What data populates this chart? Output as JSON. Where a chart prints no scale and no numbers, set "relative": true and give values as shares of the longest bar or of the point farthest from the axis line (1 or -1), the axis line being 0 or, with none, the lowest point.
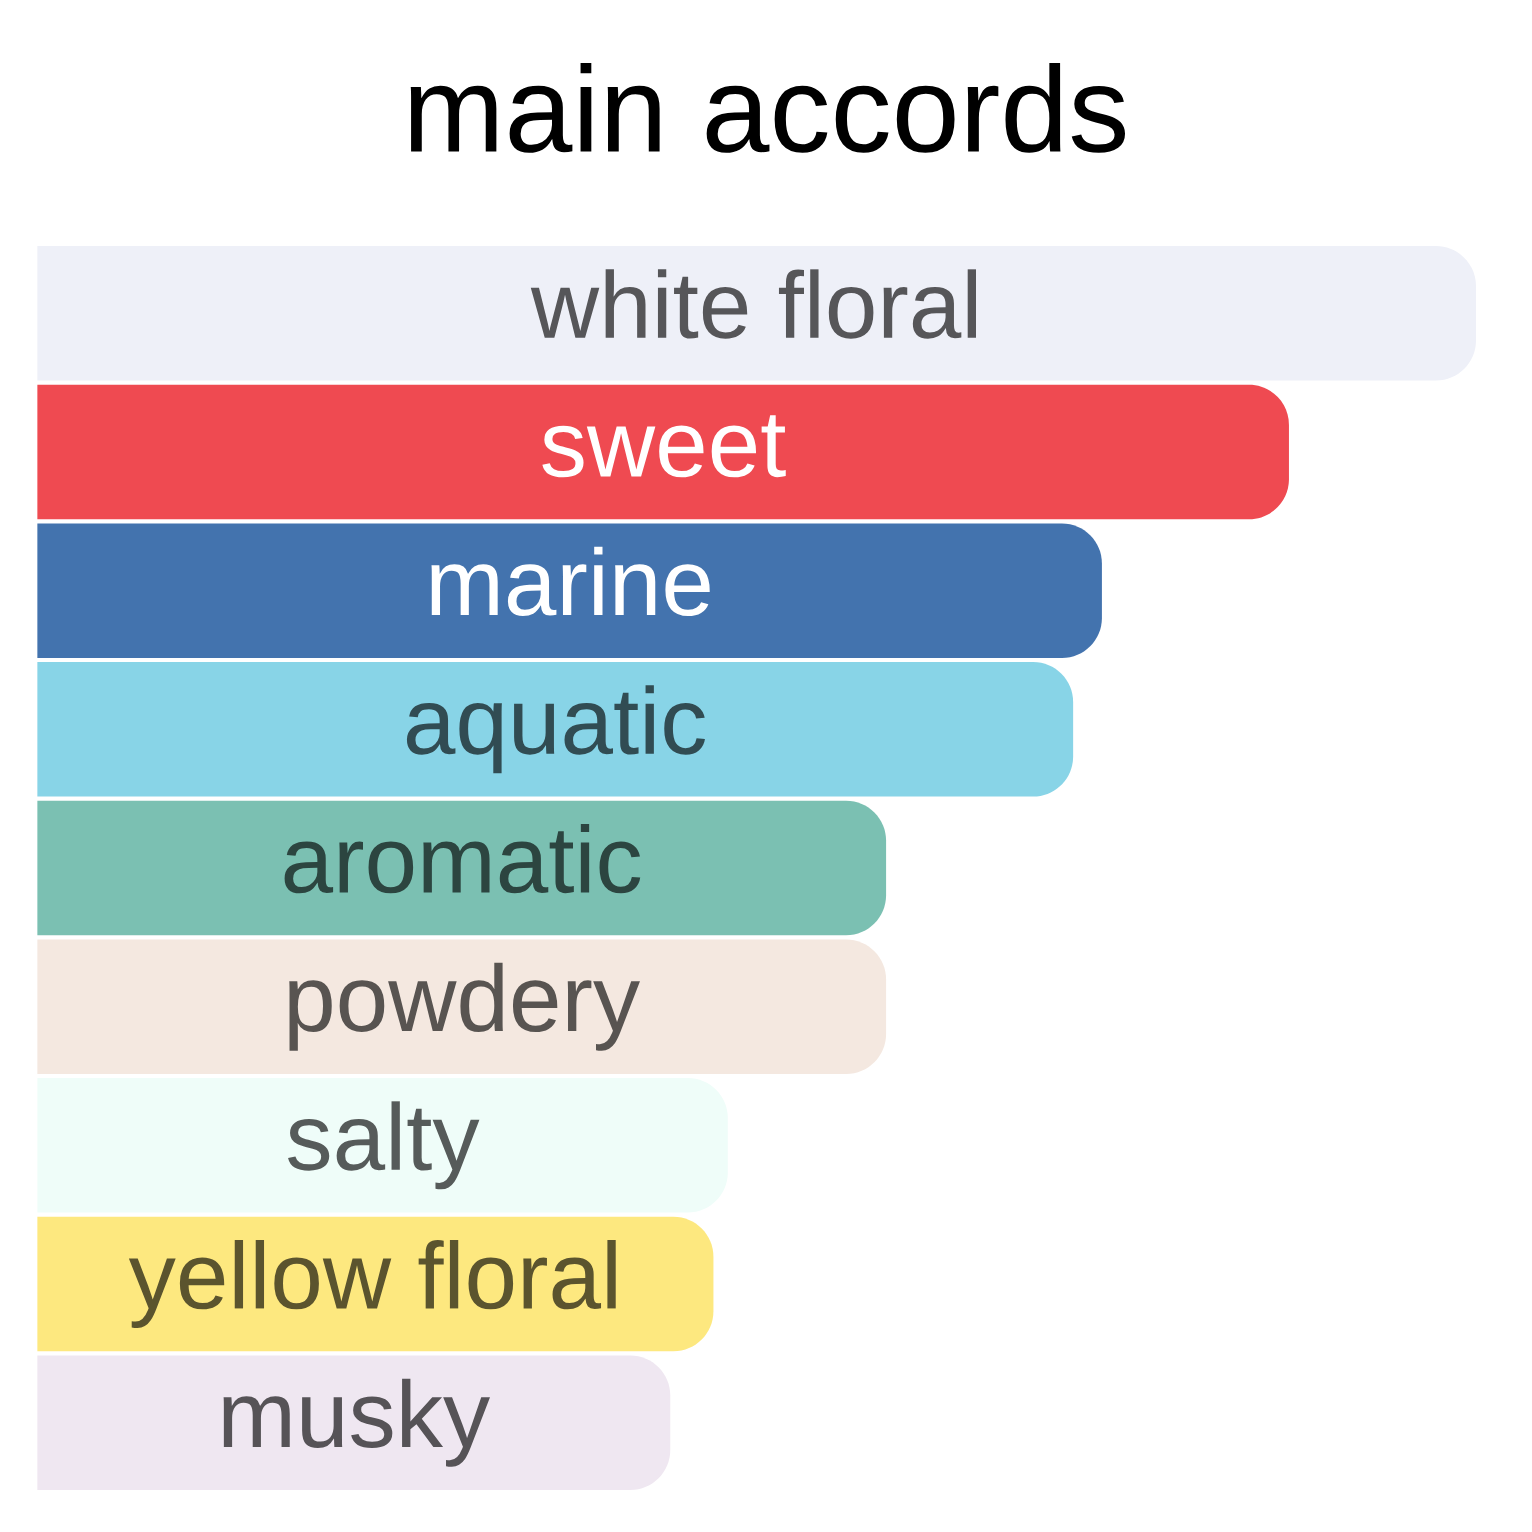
{
  "chart_data": {
    "type": "bar",
    "title": "main accords",
    "orientation": "horizontal",
    "relative": true,
    "categories": [
      "white floral",
      "sweet",
      "marine",
      "aquatic",
      "aromatic",
      "powdery",
      "salty",
      "yellow floral",
      "musky"
    ],
    "values": [
      1,
      0.87,
      0.74,
      0.72,
      0.59,
      0.59,
      0.48,
      0.47,
      0.44
    ],
    "colors": [
      "#eef0f8",
      "#ef4a51",
      "#4373ae",
      "#88d4e7",
      "#7bc0b2",
      "#f4e8e0",
      "#effdf9",
      "#fde87f",
      "#efe7f1"
    ]
  }
}
